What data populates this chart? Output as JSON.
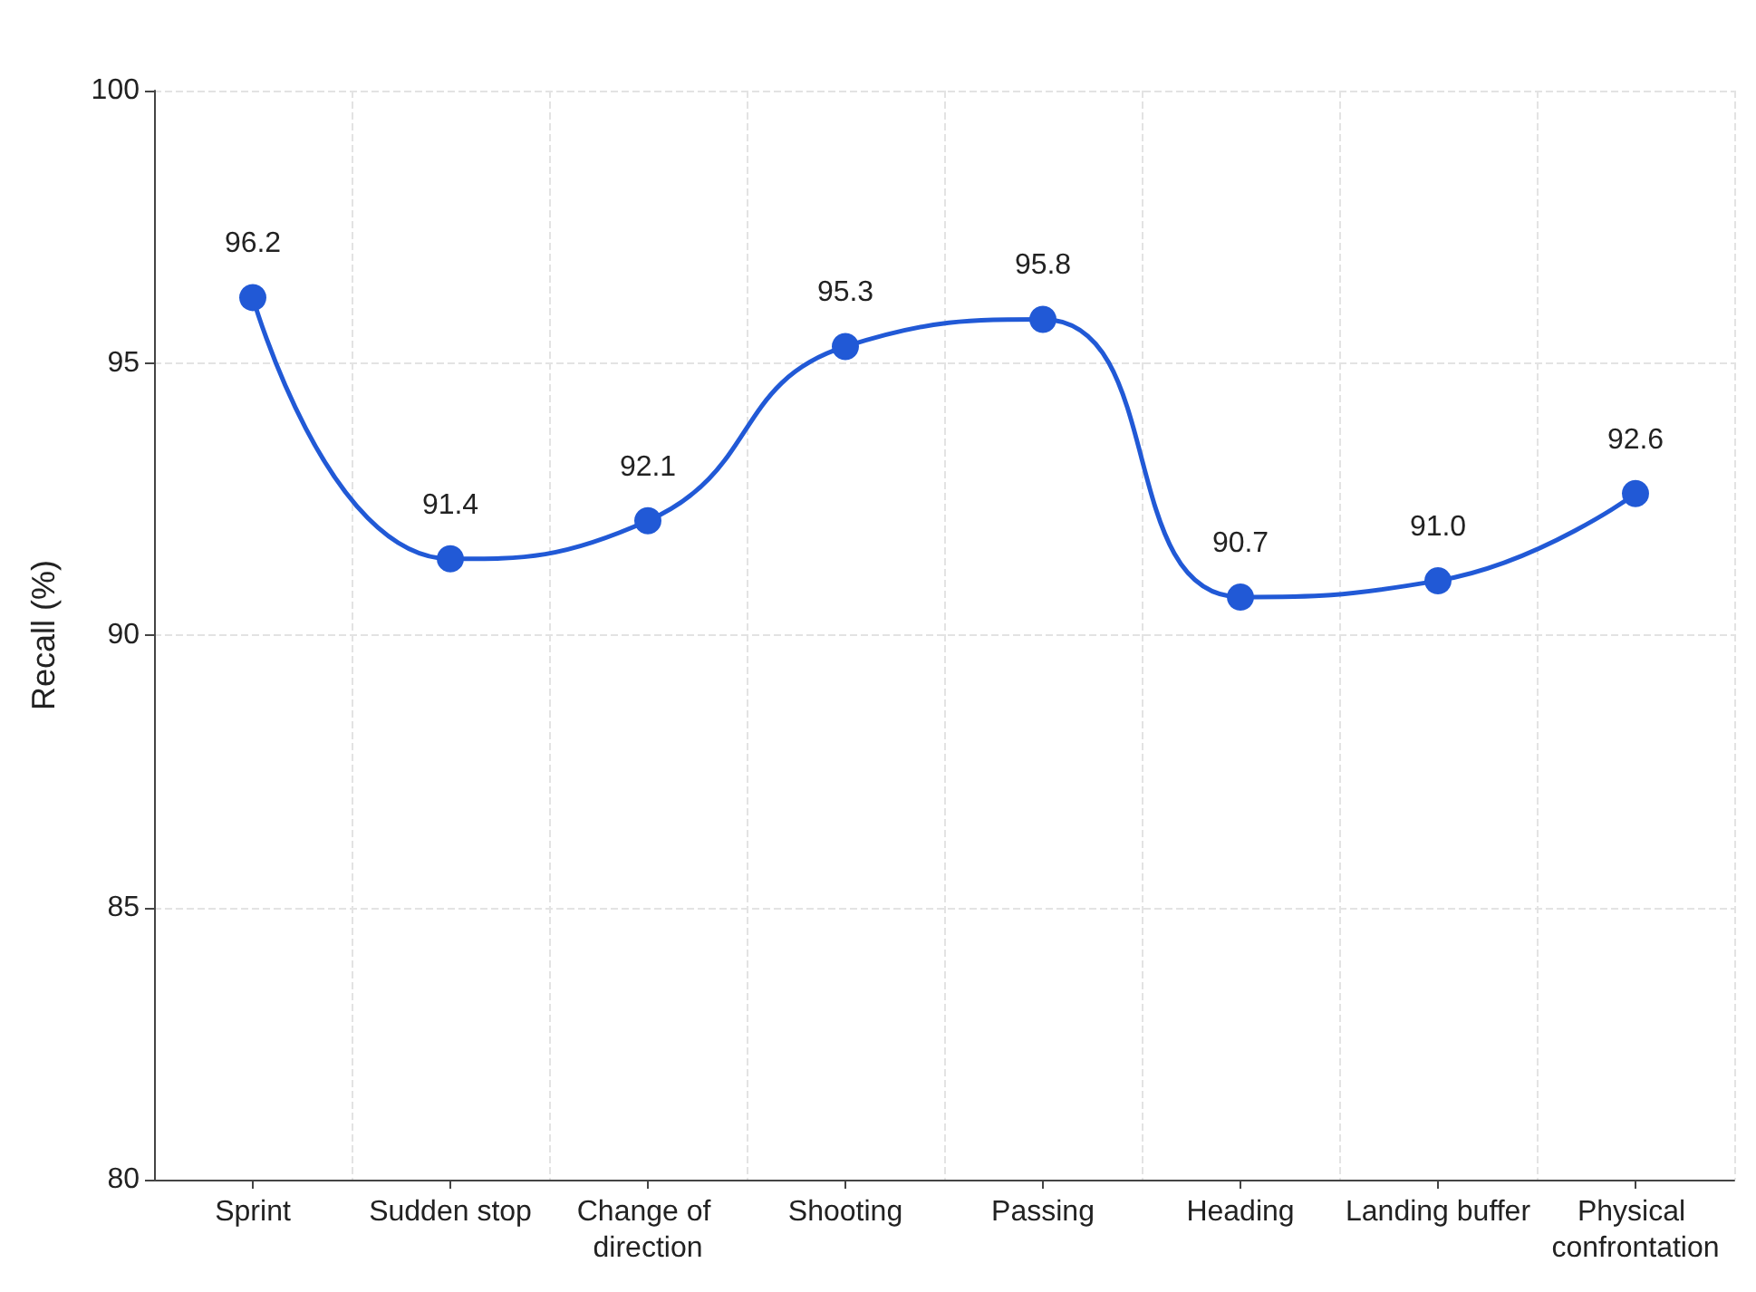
{
  "chart_data": {
    "type": "line",
    "ylabel": "Recall (%)",
    "categories": [
      "Sprint",
      "Sudden stop",
      "Change of direction",
      "Shooting",
      "Passing",
      "Heading",
      "Landing buffer",
      "Physical confrontation"
    ],
    "series": [
      {
        "color": "#2159d6",
        "values": [
          96.2,
          91.4,
          92.1,
          95.3,
          95.8,
          90.7,
          91.0,
          92.6
        ],
        "value_labels": [
          "96.2",
          "91.4",
          "92.1",
          "95.3",
          "95.8",
          "90.7",
          "91.0",
          "92.6"
        ]
      }
    ],
    "ylim": [
      80,
      100
    ],
    "yticks": [
      80,
      85,
      90,
      95,
      100
    ],
    "grid": true,
    "marker": "circle",
    "line_style": "solid"
  }
}
